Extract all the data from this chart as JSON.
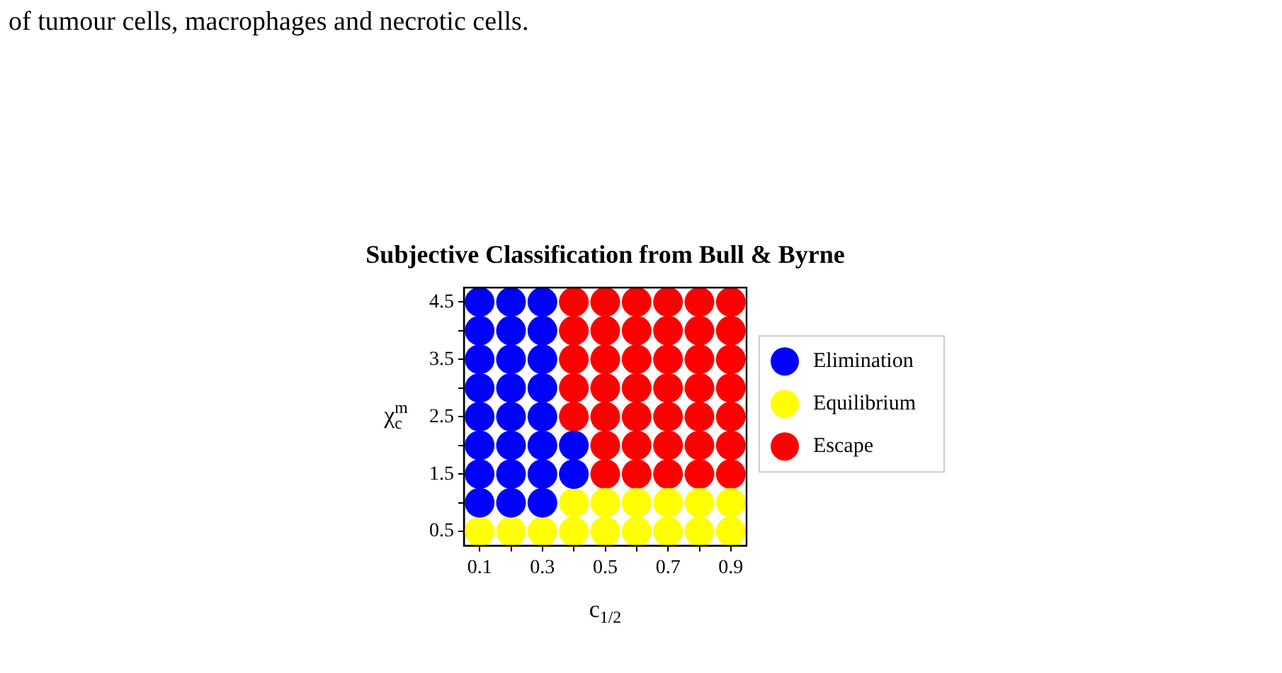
{
  "chart_data": {
    "type": "scatter",
    "title": "Subjective Classification from Bull & Byrne",
    "xlabel": "c$_{1/2}$",
    "ylabel": "χ$_{c}$$^{m}$",
    "annotations": [
      "of tumour cells, macrophages and necrotic cells."
    ],
    "series": [
      {
        "name": "Elimination",
        "color": "#0000ff",
        "x": [
          0.1,
          0.2,
          0.3,
          0.1,
          0.2,
          0.3,
          0.1,
          0.2,
          0.3,
          0.1,
          0.2,
          0.3,
          0.1,
          0.2,
          0.3,
          0.1,
          0.2,
          0.3,
          0.4,
          0.1,
          0.2,
          0.3,
          0.4,
          0.1,
          0.2,
          0.3
        ],
        "values": [
          4.5,
          4.5,
          4.5,
          4,
          4,
          4,
          3.5,
          3.5,
          3.5,
          3,
          3,
          3,
          2.5,
          2.5,
          2.5,
          2,
          2,
          2,
          2,
          1.5,
          1.5,
          1.5,
          1.5,
          1,
          1,
          1
        ]
      },
      {
        "name": "Equilibrium",
        "color": "#ffff00",
        "x": [
          0.4,
          0.5,
          0.6,
          0.7,
          0.8,
          0.9,
          0.1,
          0.2,
          0.3,
          0.4,
          0.5,
          0.6,
          0.7,
          0.8,
          0.9
        ],
        "values": [
          1,
          1,
          1,
          1,
          1,
          1,
          0.5,
          0.5,
          0.5,
          0.5,
          0.5,
          0.5,
          0.5,
          0.5,
          0.5
        ]
      },
      {
        "name": "Escape",
        "color": "#ff0000",
        "x": [
          0.4,
          0.5,
          0.6,
          0.7,
          0.8,
          0.9,
          0.4,
          0.5,
          0.6,
          0.7,
          0.8,
          0.9,
          0.4,
          0.5,
          0.6,
          0.7,
          0.8,
          0.9,
          0.4,
          0.5,
          0.6,
          0.7,
          0.8,
          0.9,
          0.4,
          0.5,
          0.6,
          0.7,
          0.8,
          0.9,
          0.5,
          0.6,
          0.7,
          0.8,
          0.9,
          0.5,
          0.6,
          0.7,
          0.8,
          0.9
        ],
        "values": [
          4.5,
          4.5,
          4.5,
          4.5,
          4.5,
          4.5,
          4,
          4,
          4,
          4,
          4,
          4,
          3.5,
          3.5,
          3.5,
          3.5,
          3.5,
          3.5,
          3,
          3,
          3,
          3,
          3,
          3,
          2.5,
          2.5,
          2.5,
          2.5,
          2.5,
          2.5,
          2,
          2,
          2,
          2,
          2,
          1.5,
          1.5,
          1.5,
          1.5,
          1.5
        ]
      }
    ],
    "xlim": [
      0.05,
      0.95
    ],
    "ylim": [
      0.25,
      4.75
    ],
    "xticks": [
      0.1,
      {
        "value": 0.2,
        "label": null
      },
      0.3,
      {
        "value": 0.4,
        "label": null
      },
      0.5,
      {
        "value": 0.6,
        "label": null
      },
      0.7,
      {
        "value": 0.8,
        "label": null
      },
      0.9
    ],
    "yticks": [
      0.5,
      {
        "value": 1,
        "label": null
      },
      1.5,
      {
        "value": 2,
        "label": null
      },
      2.5,
      {
        "value": 3,
        "label": null
      },
      3.5,
      {
        "value": 4,
        "label": null
      },
      4.5
    ],
    "marker": "circle",
    "legend": "right",
    "grid": false
  }
}
